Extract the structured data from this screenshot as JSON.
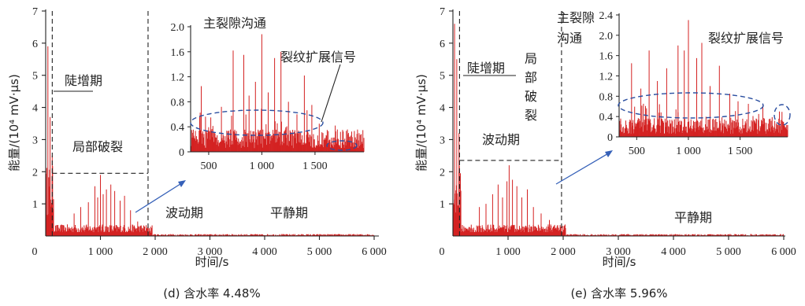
{
  "chart_data": [
    {
      "type": "line",
      "caption": "(d) 含水率 4.48%",
      "xlabel": "时间/s",
      "ylabel": "能量/(10⁴ mV·μs)",
      "xlim": [
        0,
        6000
      ],
      "ylim": [
        0,
        7
      ],
      "xticks": [
        "0",
        "1 000",
        "2 000",
        "3 000",
        "4 000",
        "5 000",
        "6 000"
      ],
      "yticks": [
        "1",
        "2",
        "3",
        "4",
        "5",
        "6",
        "7"
      ],
      "stage_boundaries_s": [
        120,
        1870
      ],
      "fluctuation_box": {
        "x": [
          120,
          1870
        ],
        "y_top": 1.95
      },
      "annotations": [
        "陡增期",
        "局部破裂",
        "波动期",
        "平静期"
      ],
      "peaks": [
        {
          "x": 40,
          "y": 5.9
        },
        {
          "x": 80,
          "y": 3.7
        },
        {
          "x": 120,
          "y": 2.5
        },
        {
          "x": 520,
          "y": 0.7
        },
        {
          "x": 640,
          "y": 0.9
        },
        {
          "x": 780,
          "y": 1.05
        },
        {
          "x": 900,
          "y": 1.55
        },
        {
          "x": 950,
          "y": 1.2
        },
        {
          "x": 1000,
          "y": 1.9
        },
        {
          "x": 1050,
          "y": 1.3
        },
        {
          "x": 1110,
          "y": 1.45
        },
        {
          "x": 1190,
          "y": 1.6
        },
        {
          "x": 1260,
          "y": 1.4
        },
        {
          "x": 1360,
          "y": 1.1
        },
        {
          "x": 1440,
          "y": 1.25
        },
        {
          "x": 1550,
          "y": 0.8
        },
        {
          "x": 1680,
          "y": 0.45
        },
        {
          "x": 1800,
          "y": 0.3
        }
      ],
      "inset": {
        "xlim": [
          330,
          1960
        ],
        "ylim": [
          0,
          2.0
        ],
        "xticks": [
          "500",
          "1 000",
          "1 500"
        ],
        "yticks": [
          "0",
          "0.4",
          "0.8",
          "1.2",
          "1.6",
          "2.0"
        ],
        "annotations": [
          "主裂隙沟通",
          "裂纹扩展信号"
        ],
        "peaks": [
          {
            "x": 430,
            "y": 1.05
          },
          {
            "x": 520,
            "y": 0.55
          },
          {
            "x": 620,
            "y": 0.72
          },
          {
            "x": 730,
            "y": 1.62
          },
          {
            "x": 830,
            "y": 1.55
          },
          {
            "x": 880,
            "y": 0.9
          },
          {
            "x": 940,
            "y": 1.12
          },
          {
            "x": 1000,
            "y": 1.88
          },
          {
            "x": 1060,
            "y": 0.95
          },
          {
            "x": 1120,
            "y": 1.5
          },
          {
            "x": 1180,
            "y": 1.6
          },
          {
            "x": 1250,
            "y": 0.8
          },
          {
            "x": 1330,
            "y": 0.6
          },
          {
            "x": 1400,
            "y": 1.22
          },
          {
            "x": 1470,
            "y": 0.75
          },
          {
            "x": 1540,
            "y": 0.45
          },
          {
            "x": 1610,
            "y": 0.25
          },
          {
            "x": 1700,
            "y": 0.15
          }
        ]
      }
    },
    {
      "type": "line",
      "caption": "(e) 含水率 5.96%",
      "xlabel": "时间/s",
      "ylabel": "能量/(10⁴ mV·μs)",
      "xlim": [
        0,
        6000
      ],
      "ylim": [
        0,
        7
      ],
      "xticks": [
        "0",
        "1 000",
        "2 000",
        "3 000",
        "4 000",
        "5 000",
        "6 000"
      ],
      "yticks": [
        "1",
        "2",
        "3",
        "4",
        "5",
        "6",
        "7"
      ],
      "stage_boundaries_s": [
        120,
        1970
      ],
      "fluctuation_box": {
        "x": [
          120,
          1970
        ],
        "y_top": 2.35
      },
      "annotations": [
        "陡增期",
        "局部破裂",
        "波动期",
        "平静期"
      ],
      "peaks": [
        {
          "x": 30,
          "y": 6.6
        },
        {
          "x": 70,
          "y": 5.5
        },
        {
          "x": 110,
          "y": 3.2
        },
        {
          "x": 480,
          "y": 0.9
        },
        {
          "x": 600,
          "y": 1.0
        },
        {
          "x": 720,
          "y": 1.3
        },
        {
          "x": 820,
          "y": 1.6
        },
        {
          "x": 900,
          "y": 1.2
        },
        {
          "x": 980,
          "y": 1.7
        },
        {
          "x": 1020,
          "y": 2.2
        },
        {
          "x": 1080,
          "y": 1.75
        },
        {
          "x": 1160,
          "y": 1.55
        },
        {
          "x": 1250,
          "y": 1.2
        },
        {
          "x": 1350,
          "y": 1.45
        },
        {
          "x": 1460,
          "y": 0.9
        },
        {
          "x": 1600,
          "y": 0.7
        },
        {
          "x": 1750,
          "y": 0.5
        },
        {
          "x": 1900,
          "y": 0.3
        }
      ],
      "inset": {
        "xlim": [
          330,
          1960
        ],
        "ylim": [
          0,
          2.4
        ],
        "xticks": [
          "500",
          "1 000",
          "1 500"
        ],
        "yticks": [
          "0",
          "0.4",
          "0.8",
          "1.2",
          "1.6",
          "2.0",
          "2.4"
        ],
        "annotations": [
          "主裂隙沟通",
          "裂纹扩展信号"
        ],
        "peaks": [
          {
            "x": 450,
            "y": 1.45
          },
          {
            "x": 540,
            "y": 0.95
          },
          {
            "x": 620,
            "y": 1.7
          },
          {
            "x": 700,
            "y": 1.1
          },
          {
            "x": 790,
            "y": 1.35
          },
          {
            "x": 900,
            "y": 1.8
          },
          {
            "x": 960,
            "y": 1.7
          },
          {
            "x": 1000,
            "y": 2.3
          },
          {
            "x": 1080,
            "y": 1.55
          },
          {
            "x": 1130,
            "y": 1.85
          },
          {
            "x": 1210,
            "y": 1.0
          },
          {
            "x": 1300,
            "y": 1.4
          },
          {
            "x": 1400,
            "y": 0.85
          },
          {
            "x": 1480,
            "y": 0.7
          },
          {
            "x": 1580,
            "y": 0.65
          },
          {
            "x": 1680,
            "y": 0.45
          },
          {
            "x": 1780,
            "y": 0.35
          },
          {
            "x": 1880,
            "y": 0.5
          }
        ]
      }
    }
  ]
}
